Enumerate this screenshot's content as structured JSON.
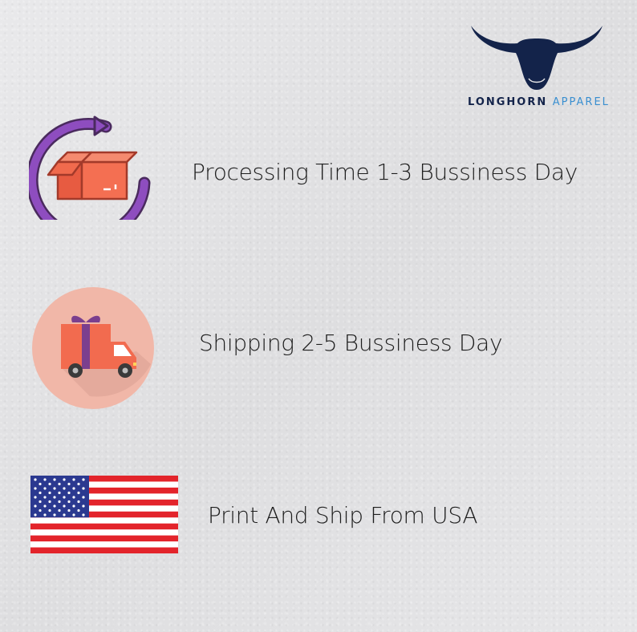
{
  "logo": {
    "brand_word_1": "LONGHORN",
    "brand_word_2": "APPAREL",
    "colors": {
      "primary": "#13234a",
      "accent": "#3a8fd0"
    },
    "icon": "longhorn-skull-icon"
  },
  "features": [
    {
      "text": "Processing Time 1-3 Bussiness Day",
      "icon": "box-with-circular-arrow-icon",
      "colors": {
        "arrow": "#8e4dbf",
        "box": "#f06a4d"
      }
    },
    {
      "text": "Shipping 2-5 Bussiness Day",
      "icon": "delivery-truck-with-gift-icon",
      "colors": {
        "circle": "#f1b7a8",
        "truck": "#f26b4f",
        "ribbon": "#7b3f8e"
      }
    },
    {
      "text": "Print And Ship From USA",
      "icon": "usa-flag-icon",
      "colors": {
        "red": "#e3242b",
        "blue": "#2b3990",
        "white": "#ffffff"
      }
    }
  ]
}
